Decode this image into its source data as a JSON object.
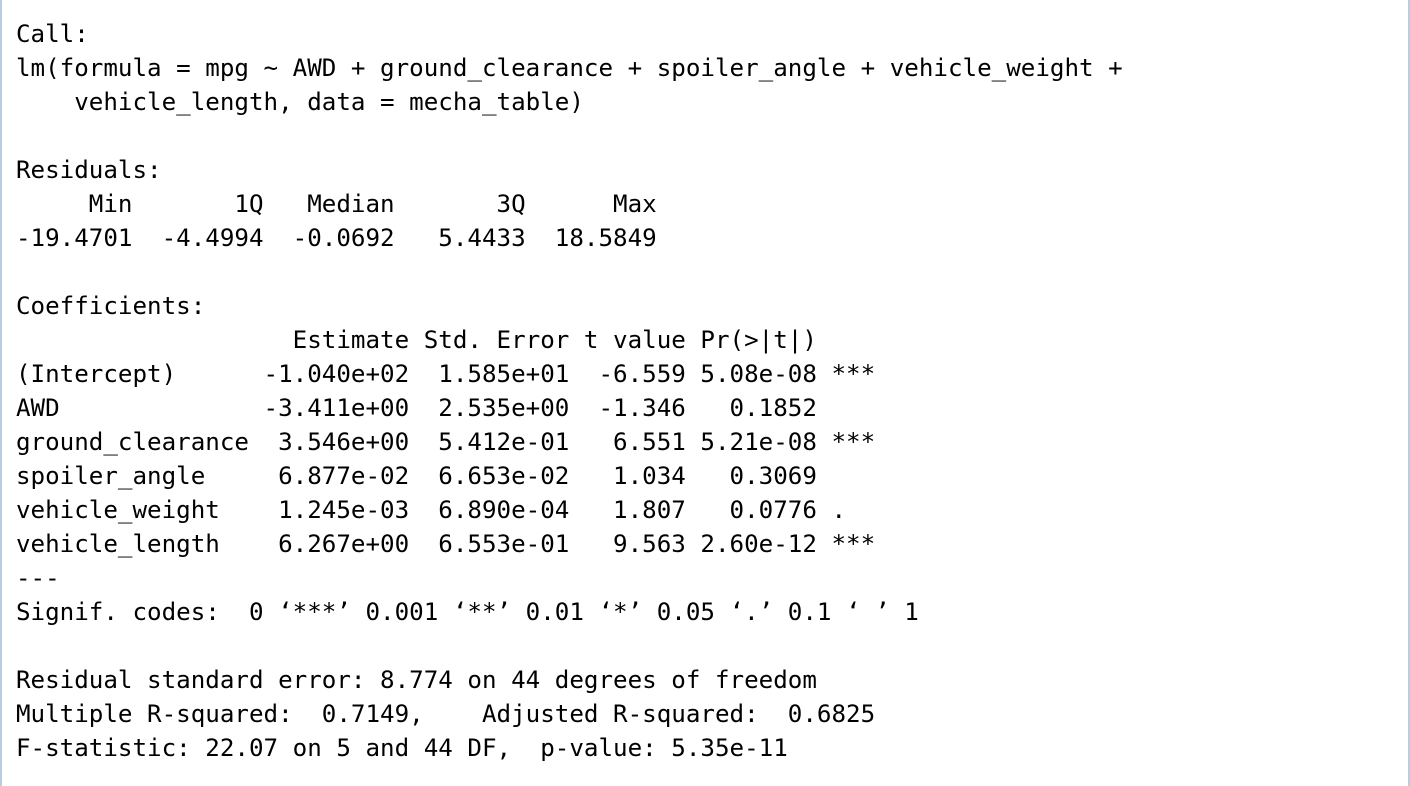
{
  "console": {
    "lines": [
      "Call:",
      "lm(formula = mpg ~ AWD + ground_clearance + spoiler_angle + vehicle_weight + ",
      "    vehicle_length, data = mecha_table)",
      "",
      "Residuals:",
      "     Min       1Q   Median       3Q      Max ",
      "-19.4701  -4.4994  -0.0692   5.4433  18.5849 ",
      "",
      "Coefficients:",
      "                   Estimate Std. Error t value Pr(>|t|)    ",
      "(Intercept)      -1.040e+02  1.585e+01  -6.559 5.08e-08 ***",
      "AWD              -3.411e+00  2.535e+00  -1.346   0.1852    ",
      "ground_clearance  3.546e+00  5.412e-01   6.551 5.21e-08 ***",
      "spoiler_angle     6.877e-02  6.653e-02   1.034   0.3069    ",
      "vehicle_weight    1.245e-03  6.890e-04   1.807   0.0776 .  ",
      "vehicle_length    6.267e+00  6.553e-01   9.563 2.60e-12 ***",
      "---",
      "Signif. codes:  0 ‘***’ 0.001 ‘**’ 0.01 ‘*’ 0.05 ‘.’ 0.1 ‘ ’ 1",
      "",
      "Residual standard error: 8.774 on 44 degrees of freedom",
      "Multiple R-squared:  0.7149,    Adjusted R-squared:  0.6825 ",
      "F-statistic: 22.07 on 5 and 44 DF,  p-value: 5.35e-11"
    ]
  }
}
